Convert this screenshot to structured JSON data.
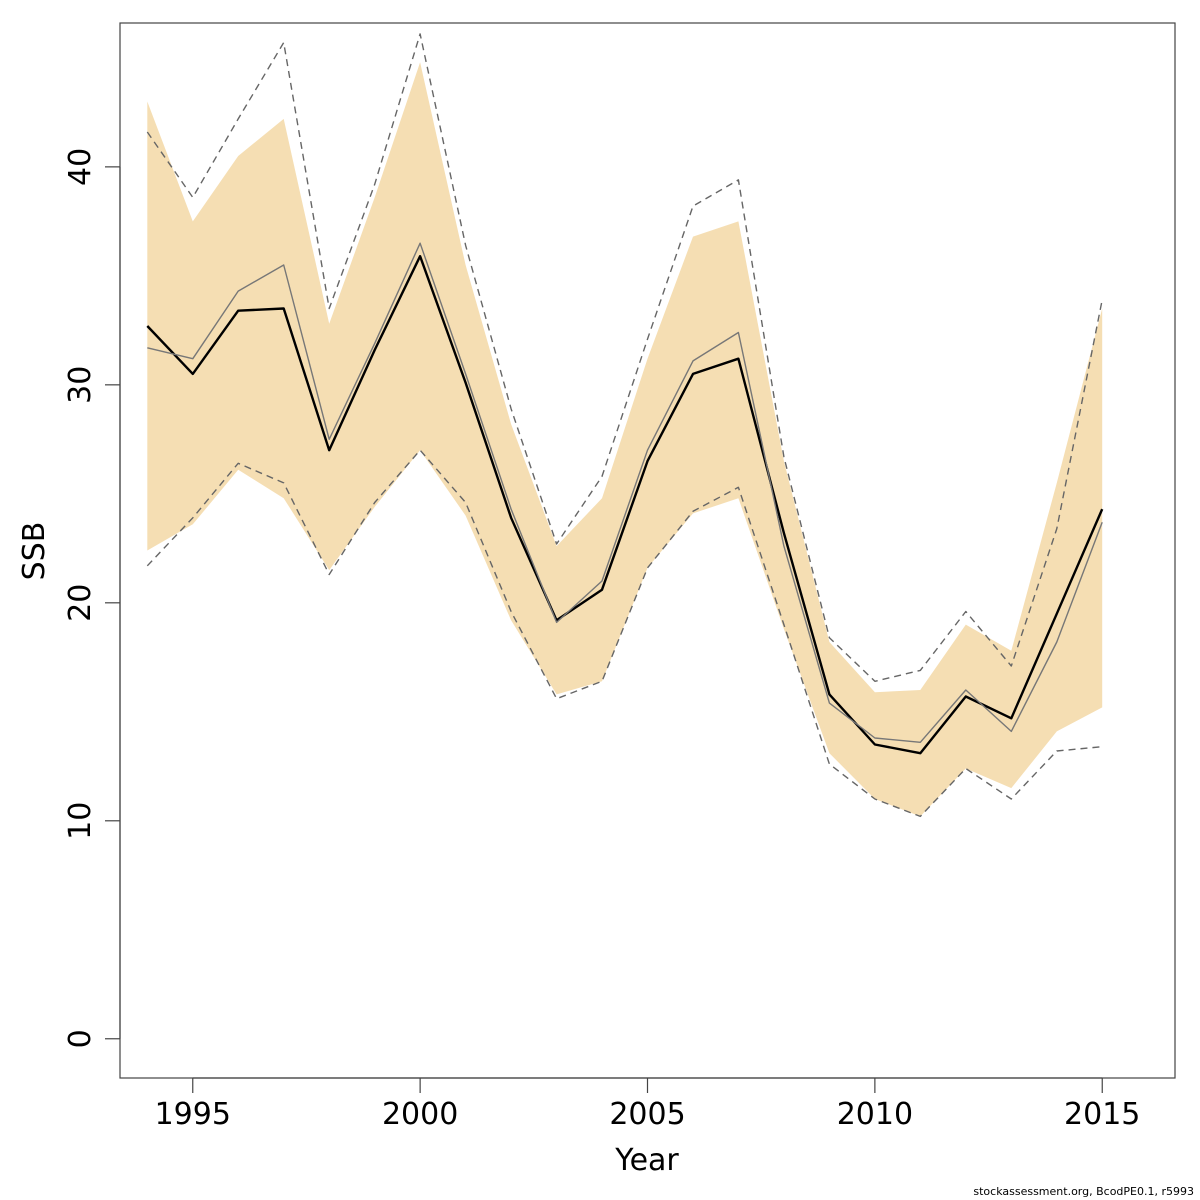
{
  "chart_data": {
    "type": "line",
    "xlabel": "Year",
    "ylabel": "SSB",
    "xlim": [
      1993.4,
      2016.6
    ],
    "ylim": [
      -1.8,
      46.6
    ],
    "x_ticks": [
      1995,
      2000,
      2005,
      2010,
      2015
    ],
    "y_ticks": [
      0,
      10,
      20,
      30,
      40
    ],
    "x": [
      1994,
      1995,
      1996,
      1997,
      1998,
      1999,
      2000,
      2001,
      2002,
      2003,
      2004,
      2005,
      2006,
      2007,
      2008,
      2009,
      2010,
      2011,
      2012,
      2013,
      2014,
      2015
    ],
    "band": {
      "color": "#F5DEB3",
      "lower": [
        22.4,
        23.6,
        26.1,
        24.8,
        21.5,
        24.4,
        27.0,
        24.0,
        19.2,
        15.8,
        16.4,
        21.6,
        24.1,
        24.8,
        18.8,
        13.1,
        11.0,
        10.2,
        12.4,
        11.5,
        14.1,
        15.2
      ],
      "upper": [
        43.0,
        37.5,
        40.5,
        42.2,
        32.8,
        38.6,
        44.8,
        35.5,
        28.2,
        22.6,
        24.8,
        31.2,
        36.8,
        37.5,
        26.5,
        18.2,
        15.9,
        16.0,
        19.0,
        17.8,
        25.5,
        33.5
      ]
    },
    "series": [
      {
        "color": "#000000",
        "style": "solid",
        "values": [
          32.7,
          30.5,
          33.4,
          33.5,
          27.0,
          31.6,
          35.9,
          30.1,
          23.9,
          19.2,
          20.6,
          26.5,
          30.5,
          31.2,
          23.2,
          15.8,
          13.5,
          13.1,
          15.7,
          14.7,
          19.5,
          24.3
        ]
      },
      {
        "color": "#777777",
        "style": "solid",
        "values": [
          31.7,
          31.2,
          34.3,
          35.5,
          27.5,
          31.9,
          36.5,
          30.5,
          24.3,
          19.1,
          21.0,
          27.0,
          31.1,
          32.4,
          22.6,
          15.4,
          13.8,
          13.6,
          16.0,
          14.1,
          18.2,
          23.7
        ]
      },
      {
        "color": "#666666",
        "style": "dashed",
        "values": [
          41.6,
          38.6,
          42.2,
          45.7,
          33.5,
          39.2,
          46.1,
          36.4,
          28.9,
          22.7,
          25.8,
          32.1,
          38.2,
          39.4,
          26.7,
          18.4,
          16.4,
          16.9,
          19.6,
          17.1,
          23.4,
          33.9
        ]
      },
      {
        "color": "#666666",
        "style": "dashed",
        "values": [
          21.7,
          23.9,
          26.4,
          25.5,
          21.3,
          24.6,
          27.0,
          24.6,
          19.6,
          15.6,
          16.4,
          21.6,
          24.2,
          25.3,
          19.0,
          12.6,
          11.0,
          10.2,
          12.4,
          11.0,
          13.2,
          13.4
        ]
      }
    ],
    "grid": false,
    "legend": "none"
  },
  "footnote": "stockassessment.org, BcodPE0.1, r5993"
}
